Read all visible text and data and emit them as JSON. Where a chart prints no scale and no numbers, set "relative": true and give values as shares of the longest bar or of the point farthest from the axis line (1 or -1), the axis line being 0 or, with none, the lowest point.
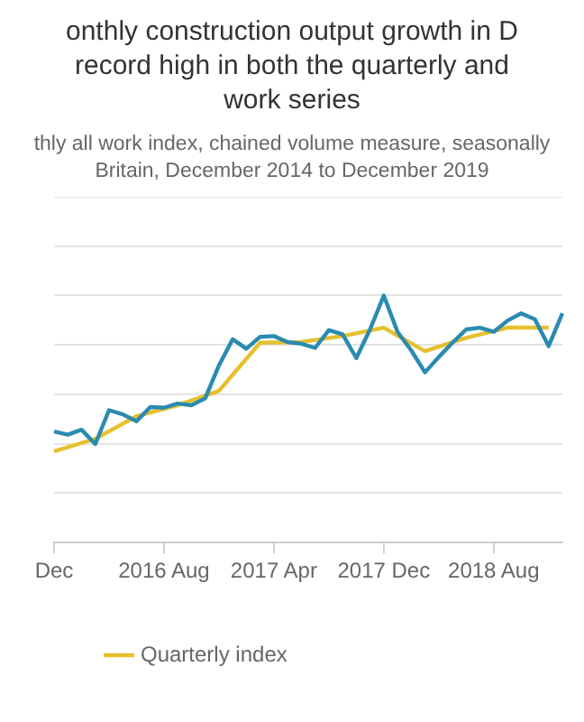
{
  "chart_data": {
    "type": "line",
    "title": "onthly construction output growth in D\nrecord high in both the quarterly and\nwork series",
    "subtitle": "thly all work index, chained volume measure, seasonally\nBritain, December 2014 to December 2019",
    "categories": [
      "Dec",
      null,
      null,
      null,
      null,
      null,
      null,
      null,
      "2016 Aug",
      null,
      null,
      null,
      null,
      null,
      null,
      null,
      "2017 Apr",
      null,
      null,
      null,
      null,
      null,
      null,
      null,
      "2017 Dec",
      null,
      null,
      null,
      null,
      null,
      null,
      null,
      "2018 Aug",
      null,
      null,
      null,
      null,
      null
    ],
    "relative": true,
    "grid": "y",
    "legend": "bottom",
    "series": [
      {
        "color": "#2a8bb0",
        "values": [
          0.45,
          0.437,
          0.457,
          0.399,
          0.536,
          0.519,
          0.491,
          0.549,
          0.546,
          0.563,
          0.556,
          0.584,
          0.717,
          0.823,
          0.785,
          0.833,
          0.836,
          0.812,
          0.805,
          0.788,
          0.86,
          0.843,
          0.747,
          0.863,
          1,
          0.853,
          0.778,
          0.689,
          0.751,
          0.809,
          0.863,
          0.87,
          0.853,
          0.898,
          0.928,
          0.904,
          0.795,
          0.928
        ]
      },
      {
        "name": "Quarterly index",
        "color": "#e6c02e",
        "values": [
          0.369,
          null,
          null,
          0.42,
          null,
          null,
          0.512,
          null,
          null,
          0.556,
          null,
          null,
          0.614,
          null,
          null,
          0.809,
          null,
          null,
          0.812,
          null,
          null,
          0.836,
          null,
          null,
          0.87,
          null,
          null,
          0.775,
          null,
          null,
          0.829,
          null,
          null,
          0.87,
          null,
          null,
          0.87,
          null
        ]
      }
    ]
  }
}
